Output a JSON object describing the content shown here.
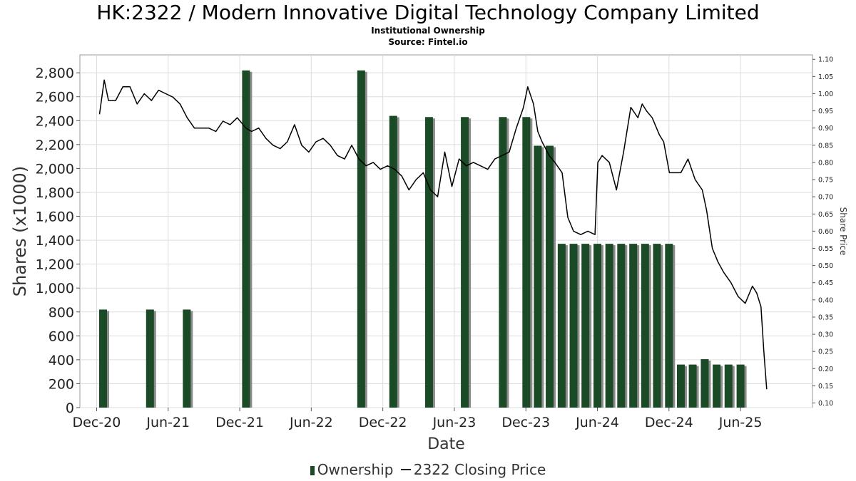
{
  "header": {
    "title": "HK:2322 / Modern Innovative Digital Technology Company Limited",
    "subtitle": "Institutional Ownership",
    "source": "Source: Fintel.io"
  },
  "legend": {
    "ownership_label": "Ownership",
    "price_label": "2322 Closing Price"
  },
  "colors": {
    "bar": "#1b4a26",
    "bar_shadow": "#8c8c8c",
    "line": "#000000",
    "grid": "#dddddd"
  },
  "chart_data": {
    "type": "bar",
    "title": "HK:2322 / Modern Innovative Digital Technology Company Limited",
    "subtitle": "Institutional Ownership",
    "xlabel": "Date",
    "ylabel": "Shares (x1000)",
    "y2label": "Share Price",
    "grid": true,
    "legend_position": "bottom-center",
    "xlim": [
      2020.8,
      2025.92
    ],
    "ylim": [
      0,
      2950
    ],
    "y2lim": [
      0.0866,
      1.1129
    ],
    "x_ticks": [
      {
        "label": "Dec-20",
        "value": 2020.917
      },
      {
        "label": "Jun-21",
        "value": 2021.417
      },
      {
        "label": "Dec-21",
        "value": 2021.917
      },
      {
        "label": "Jun-22",
        "value": 2022.417
      },
      {
        "label": "Dec-22",
        "value": 2022.917
      },
      {
        "label": "Jun-23",
        "value": 2023.417
      },
      {
        "label": "Dec-23",
        "value": 2023.917
      },
      {
        "label": "Jun-24",
        "value": 2024.417
      },
      {
        "label": "Dec-24",
        "value": 2024.917
      },
      {
        "label": "Jun-25",
        "value": 2025.417
      }
    ],
    "y_ticks": [
      0,
      200,
      400,
      600,
      800,
      1000,
      1200,
      1400,
      1600,
      1800,
      2000,
      2200,
      2400,
      2600,
      2800
    ],
    "y2_ticks": [
      0.1,
      0.15,
      0.2,
      0.25,
      0.3,
      0.35,
      0.4,
      0.45,
      0.5,
      0.55,
      0.6,
      0.65,
      0.7,
      0.75,
      0.8,
      0.85,
      0.9,
      0.95,
      1.0,
      1.05,
      1.1
    ],
    "series": [
      {
        "name": "Ownership",
        "type": "bar",
        "axis": "left",
        "x": [
          2020.962,
          2021.29,
          2021.547,
          2021.961,
          2022.766,
          2022.99,
          2023.24,
          2023.49,
          2023.756,
          2023.92,
          2024.0,
          2024.083,
          2024.167,
          2024.25,
          2024.333,
          2024.417,
          2024.5,
          2024.583,
          2024.667,
          2024.75,
          2024.833,
          2024.917,
          2025.0,
          2025.083,
          2025.167,
          2025.25,
          2025.333,
          2025.417
        ],
        "values": [
          820,
          820,
          820,
          2820,
          2820,
          2440,
          2430,
          2430,
          2430,
          2430,
          2190,
          2190,
          1370,
          1370,
          1370,
          1370,
          1370,
          1370,
          1370,
          1370,
          1370,
          1370,
          360,
          360,
          405,
          360,
          360,
          360
        ]
      },
      {
        "name": "2322 Closing Price",
        "type": "line",
        "axis": "right",
        "x": [
          2020.937,
          2020.97,
          2021.0,
          2021.05,
          2021.1,
          2021.15,
          2021.2,
          2021.25,
          2021.3,
          2021.35,
          2021.4,
          2021.45,
          2021.5,
          2021.55,
          2021.6,
          2021.65,
          2021.7,
          2021.75,
          2021.8,
          2021.85,
          2021.9,
          2021.96,
          2022.0,
          2022.05,
          2022.1,
          2022.15,
          2022.2,
          2022.25,
          2022.3,
          2022.35,
          2022.4,
          2022.45,
          2022.5,
          2022.55,
          2022.6,
          2022.65,
          2022.7,
          2022.75,
          2022.8,
          2022.85,
          2022.9,
          2022.95,
          2023.0,
          2023.05,
          2023.1,
          2023.15,
          2023.2,
          2023.25,
          2023.3,
          2023.35,
          2023.4,
          2023.45,
          2023.5,
          2023.55,
          2023.6,
          2023.65,
          2023.7,
          2023.75,
          2023.8,
          2023.85,
          2023.9,
          2023.93,
          2023.97,
          2024.0,
          2024.03,
          2024.08,
          2024.12,
          2024.17,
          2024.21,
          2024.25,
          2024.3,
          2024.35,
          2024.4,
          2024.42,
          2024.45,
          2024.5,
          2024.55,
          2024.6,
          2024.65,
          2024.7,
          2024.73,
          2024.76,
          2024.8,
          2024.85,
          2024.88,
          2024.92,
          2024.97,
          2025.0,
          2025.05,
          2025.1,
          2025.15,
          2025.18,
          2025.22,
          2025.26,
          2025.3,
          2025.35,
          2025.4,
          2025.45,
          2025.5,
          2025.53,
          2025.56,
          2025.58,
          2025.6
        ],
        "values": [
          0.94,
          1.04,
          0.98,
          0.98,
          1.02,
          1.02,
          0.97,
          1.0,
          0.98,
          1.01,
          1.0,
          0.99,
          0.97,
          0.93,
          0.9,
          0.9,
          0.9,
          0.89,
          0.92,
          0.91,
          0.93,
          0.9,
          0.89,
          0.9,
          0.87,
          0.85,
          0.84,
          0.86,
          0.91,
          0.85,
          0.83,
          0.86,
          0.87,
          0.85,
          0.82,
          0.81,
          0.85,
          0.81,
          0.79,
          0.8,
          0.78,
          0.79,
          0.78,
          0.76,
          0.72,
          0.75,
          0.77,
          0.72,
          0.7,
          0.83,
          0.73,
          0.81,
          0.79,
          0.8,
          0.79,
          0.78,
          0.81,
          0.82,
          0.83,
          0.9,
          0.96,
          1.02,
          0.97,
          0.89,
          0.86,
          0.82,
          0.8,
          0.77,
          0.64,
          0.6,
          0.59,
          0.6,
          0.59,
          0.8,
          0.82,
          0.8,
          0.72,
          0.83,
          0.96,
          0.93,
          0.97,
          0.95,
          0.93,
          0.88,
          0.86,
          0.77,
          0.77,
          0.77,
          0.81,
          0.75,
          0.72,
          0.66,
          0.55,
          0.51,
          0.48,
          0.45,
          0.41,
          0.39,
          0.44,
          0.42,
          0.38,
          0.25,
          0.14
        ]
      }
    ]
  }
}
